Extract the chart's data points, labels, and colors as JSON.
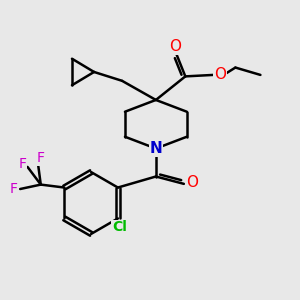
{
  "bg_color": "#e8e8e8",
  "bond_color": "#000000",
  "N_color": "#0000cc",
  "O_color": "#ff0000",
  "Cl_color": "#00bb00",
  "F_color": "#cc00cc",
  "line_width": 1.8,
  "figsize": [
    3.0,
    3.0
  ],
  "dpi": 100,
  "xlim": [
    0,
    10
  ],
  "ylim": [
    0,
    10
  ]
}
